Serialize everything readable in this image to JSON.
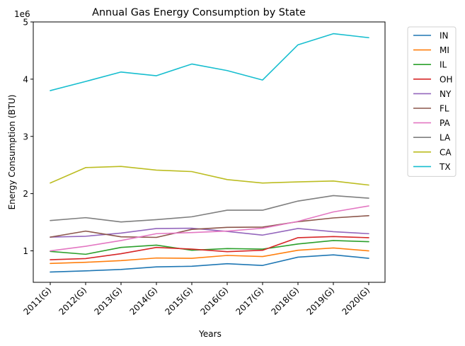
{
  "chart_data": {
    "type": "line",
    "title": "Annual Gas Energy Consumption by State",
    "xlabel": "Years",
    "ylabel": "Energy Consumption (BTU)",
    "y_multiplier_label": "1e6",
    "categories": [
      "2011(G)",
      "2012(G)",
      "2013(G)",
      "2014(G)",
      "2015(G)",
      "2016(G)",
      "2017(G)",
      "2018(G)",
      "2019(G)",
      "2020(G)"
    ],
    "ylim": [
      450000,
      5000000
    ],
    "yticks": [
      1000000,
      2000000,
      3000000,
      4000000,
      5000000
    ],
    "ytick_labels": [
      "1",
      "2",
      "3",
      "4",
      "5"
    ],
    "grid": false,
    "legend_position": "outside-right",
    "series": [
      {
        "name": "IN",
        "color": "#1f77b4",
        "values": [
          630000,
          650000,
          675000,
          720000,
          730000,
          775000,
          745000,
          890000,
          930000,
          870000
        ]
      },
      {
        "name": "MI",
        "color": "#ff7f0e",
        "values": [
          780000,
          800000,
          830000,
          875000,
          870000,
          920000,
          900000,
          1010000,
          1050000,
          1000000
        ]
      },
      {
        "name": "IL",
        "color": "#2ca02c",
        "values": [
          990000,
          940000,
          1060000,
          1100000,
          1010000,
          1040000,
          1030000,
          1120000,
          1180000,
          1160000
        ]
      },
      {
        "name": "OH",
        "color": "#d62728",
        "values": [
          845000,
          865000,
          950000,
          1060000,
          1030000,
          985000,
          1010000,
          1230000,
          1250000,
          1230000
        ]
      },
      {
        "name": "NY",
        "color": "#9467bd",
        "values": [
          1240000,
          1255000,
          1310000,
          1390000,
          1395000,
          1340000,
          1275000,
          1390000,
          1335000,
          1300000
        ]
      },
      {
        "name": "FL",
        "color": "#8c564b",
        "values": [
          1240000,
          1345000,
          1245000,
          1235000,
          1375000,
          1410000,
          1415000,
          1510000,
          1575000,
          1615000
        ]
      },
      {
        "name": "PA",
        "color": "#e377c2",
        "values": [
          1000000,
          1080000,
          1180000,
          1300000,
          1320000,
          1345000,
          1395000,
          1515000,
          1680000,
          1785000
        ]
      },
      {
        "name": "LA",
        "color": "#7f7f7f",
        "values": [
          1530000,
          1580000,
          1505000,
          1545000,
          1595000,
          1710000,
          1710000,
          1870000,
          1965000,
          1920000
        ]
      },
      {
        "name": "CA",
        "color": "#bcbd22",
        "values": [
          2185000,
          2455000,
          2475000,
          2410000,
          2385000,
          2245000,
          2185000,
          2205000,
          2220000,
          2150000
        ]
      },
      {
        "name": "TX",
        "color": "#17becf",
        "values": [
          3800000,
          3960000,
          4125000,
          4060000,
          4265000,
          4150000,
          3985000,
          4600000,
          4795000,
          4725000
        ]
      }
    ]
  }
}
